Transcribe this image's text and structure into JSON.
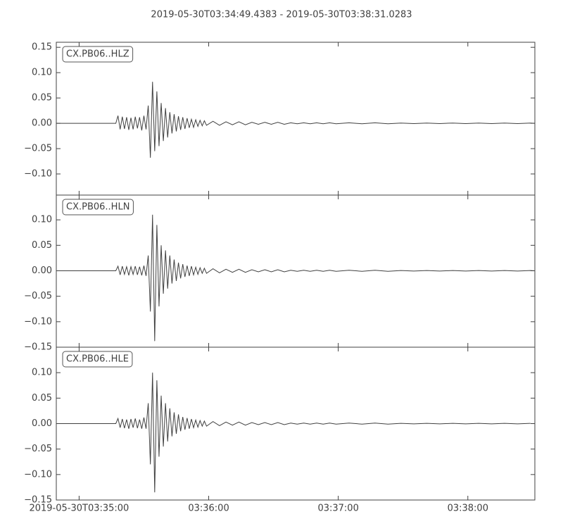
{
  "title": "2019-05-30T03:34:49.4383  -  2019-05-30T03:38:31.0283",
  "chart_data": [
    {
      "type": "line",
      "series": [
        {
          "name": "CX.PB06..HLZ",
          "color": "#404040",
          "values": [
            0,
            0,
            0.015,
            -0.012,
            0.013,
            -0.011,
            0.012,
            -0.013,
            0.011,
            -0.012,
            0.013,
            -0.01,
            0.012,
            -0.014,
            0.015,
            -0.012,
            0.035,
            -0.068,
            0.082,
            -0.055,
            0.063,
            -0.045,
            0.04,
            -0.035,
            0.03,
            -0.028,
            0.022,
            -0.02,
            0.018,
            -0.016,
            0.014,
            -0.013,
            0.012,
            -0.011,
            0.01,
            -0.009,
            0.008,
            -0.008,
            0.007,
            -0.006,
            0.006,
            -0.005,
            0.005,
            -0.004,
            0.004,
            -0.004,
            0.003,
            -0.003,
            0.003,
            -0.003,
            0.002,
            -0.002,
            0.002,
            -0.002,
            0.002,
            -0.002,
            0.001,
            -0.001,
            0.001,
            -0.001,
            0.001,
            -0.001,
            0.001,
            -0.001,
            0.001,
            -0.001,
            0.001,
            -0.001,
            0.0005,
            -0.0005,
            0.0005,
            -0.0005,
            0.0005,
            -0.0005,
            0.0005,
            -0.0005,
            0.0005,
            -0.0005,
            0.0005,
            0
          ]
        }
      ],
      "ylim": [
        -0.1417,
        0.16
      ],
      "yticks": [
        {
          "value": -0.1,
          "label": "−0.10"
        },
        {
          "value": -0.05,
          "label": "−0.05"
        },
        {
          "value": 0,
          "label": "0.00"
        },
        {
          "value": 0.05,
          "label": "0.05"
        },
        {
          "value": 0.1,
          "label": "0.10"
        },
        0.15
      ]
    },
    {
      "type": "line",
      "series": [
        {
          "name": "CX.PB06..HLN",
          "color": "#404040",
          "values": [
            0,
            0,
            0.009,
            -0.008,
            0.009,
            -0.007,
            0.008,
            -0.009,
            0.008,
            -0.007,
            0.009,
            -0.008,
            0.008,
            -0.009,
            0.01,
            -0.01,
            0.03,
            -0.08,
            0.11,
            -0.138,
            0.09,
            -0.07,
            0.05,
            -0.045,
            0.04,
            -0.035,
            0.03,
            -0.025,
            0.022,
            -0.02,
            0.016,
            -0.015,
            0.013,
            -0.012,
            0.01,
            -0.01,
            0.009,
            -0.008,
            0.007,
            -0.007,
            0.006,
            -0.005,
            0.005,
            -0.005,
            0.004,
            -0.004,
            0.003,
            -0.003,
            0.003,
            -0.003,
            0.002,
            -0.002,
            0.002,
            -0.002,
            0.002,
            -0.002,
            0.001,
            -0.001,
            0.001,
            -0.001,
            0.001,
            -0.001,
            0.001,
            -0.001,
            0.001,
            -0.001,
            0.001,
            -0.001,
            0.0005,
            -0.0005,
            0.0005,
            -0.0005,
            0.0005,
            -0.0005,
            0.0005,
            -0.0005,
            0.0005,
            -0.0005,
            0.0005,
            0
          ]
        }
      ],
      "ylim": [
        -0.15,
        0.1486
      ],
      "yticks": [
        {
          "value": -0.15,
          "label": "−0.15"
        },
        {
          "value": -0.1,
          "label": "−0.10"
        },
        {
          "value": -0.05,
          "label": "−0.05"
        },
        {
          "value": 0,
          "label": "0.00"
        },
        {
          "value": 0.05,
          "label": "0.05"
        },
        {
          "value": 0.1,
          "label": "0.10"
        }
      ]
    },
    {
      "type": "line",
      "series": [
        {
          "name": "CX.PB06..HLE",
          "color": "#404040",
          "values": [
            0,
            0,
            0.01,
            -0.008,
            0.009,
            -0.009,
            0.008,
            -0.01,
            0.009,
            -0.008,
            0.01,
            -0.009,
            0.008,
            -0.01,
            0.012,
            -0.01,
            0.04,
            -0.08,
            0.1,
            -0.135,
            0.085,
            -0.065,
            0.055,
            -0.045,
            0.04,
            -0.035,
            0.03,
            -0.025,
            0.022,
            -0.02,
            0.018,
            -0.015,
            0.013,
            -0.012,
            0.011,
            -0.01,
            0.009,
            -0.008,
            0.007,
            -0.007,
            0.006,
            -0.005,
            0.005,
            -0.005,
            0.004,
            -0.004,
            0.003,
            -0.003,
            0.003,
            -0.003,
            0.002,
            -0.002,
            0.002,
            -0.002,
            0.002,
            -0.002,
            0.001,
            -0.001,
            0.001,
            -0.001,
            0.001,
            -0.001,
            0.001,
            -0.001,
            0.001,
            -0.001,
            0.001,
            -0.001,
            0.0005,
            -0.0005,
            0.0005,
            -0.0005,
            0.0005,
            -0.0005,
            0.0005,
            -0.0005,
            0.0005,
            -0.0005,
            0.0005,
            null
          ]
        }
      ],
      "ylim": [
        -0.15,
        0.15
      ],
      "yticks": [
        {
          "value": -0.15,
          "label": "−0.15"
        },
        {
          "value": -0.1,
          "label": "−0.10"
        },
        {
          "value": -0.05,
          "label": "−0.05"
        },
        {
          "value": 0,
          "label": "0.00"
        },
        {
          "value": 0.05,
          "label": "0.05"
        },
        {
          "value": 0.1,
          "label": "0.10"
        }
      ],
      "xticks": [
        "2019-05-30T03:35:00",
        {
          "value": "2019-05-30T03:36:00",
          "label": "03:36:00"
        },
        {
          "value": "2019-05-30T03:37:00",
          "label": "03:37:00"
        },
        {
          "value": "2019-05-30T03:38:00",
          "label": "03:38:00"
        }
      ]
    }
  ],
  "x": [
    "2019-05-30T03:34:49.4383",
    "2019-05-30T03:35:17",
    "2019-05-30T03:35:18",
    "2019-05-30T03:35:19",
    "2019-05-30T03:35:20",
    "2019-05-30T03:35:21",
    "2019-05-30T03:35:22",
    "2019-05-30T03:35:23",
    "2019-05-30T03:35:24",
    "2019-05-30T03:35:25",
    "2019-05-30T03:35:26",
    "2019-05-30T03:35:27",
    "2019-05-30T03:35:28",
    "2019-05-30T03:35:29",
    "2019-05-30T03:35:30",
    "2019-05-30T03:35:31",
    "2019-05-30T03:35:32",
    "2019-05-30T03:35:33",
    "2019-05-30T03:35:34",
    "2019-05-30T03:35:35",
    "2019-05-30T03:35:36",
    "2019-05-30T03:35:37",
    "2019-05-30T03:35:38",
    "2019-05-30T03:35:39",
    "2019-05-30T03:35:40",
    "2019-05-30T03:35:41",
    "2019-05-30T03:35:42",
    "2019-05-30T03:35:43",
    "2019-05-30T03:35:44",
    "2019-05-30T03:35:45",
    "2019-05-30T03:35:46",
    "2019-05-30T03:35:47",
    "2019-05-30T03:35:48",
    "2019-05-30T03:35:49",
    "2019-05-30T03:35:50",
    "2019-05-30T03:35:51",
    "2019-05-30T03:35:52",
    "2019-05-30T03:35:53",
    "2019-05-30T03:35:54",
    "2019-05-30T03:35:55",
    "2019-05-30T03:35:56",
    "2019-05-30T03:35:57",
    "2019-05-30T03:35:58",
    "2019-05-30T03:35:59",
    "2019-05-30T03:36:02",
    "2019-05-30T03:36:05",
    "2019-05-30T03:36:08",
    "2019-05-30T03:36:11",
    "2019-05-30T03:36:14",
    "2019-05-30T03:36:17",
    "2019-05-30T03:36:20",
    "2019-05-30T03:36:23",
    "2019-05-30T03:36:26",
    "2019-05-30T03:36:29",
    "2019-05-30T03:36:32",
    "2019-05-30T03:36:35",
    "2019-05-30T03:36:38",
    "2019-05-30T03:36:41",
    "2019-05-30T03:36:44",
    "2019-05-30T03:36:47",
    "2019-05-30T03:36:50",
    "2019-05-30T03:36:53",
    "2019-05-30T03:36:56",
    "2019-05-30T03:36:59",
    "2019-05-30T03:37:05",
    "2019-05-30T03:37:11",
    "2019-05-30T03:37:17",
    "2019-05-30T03:37:23",
    "2019-05-30T03:37:29",
    "2019-05-30T03:37:35",
    "2019-05-30T03:37:41",
    "2019-05-30T03:37:47",
    "2019-05-30T03:37:53",
    "2019-05-30T03:37:59",
    "2019-05-30T03:38:05",
    "2019-05-30T03:38:11",
    "2019-05-30T03:38:17",
    "2019-05-30T03:38:23",
    "2019-05-30T03:38:29",
    "2019-05-30T03:38:31.0283"
  ],
  "xlim": [
    "2019-05-30T03:34:49.4383",
    "2019-05-30T03:38:31.0283"
  ]
}
